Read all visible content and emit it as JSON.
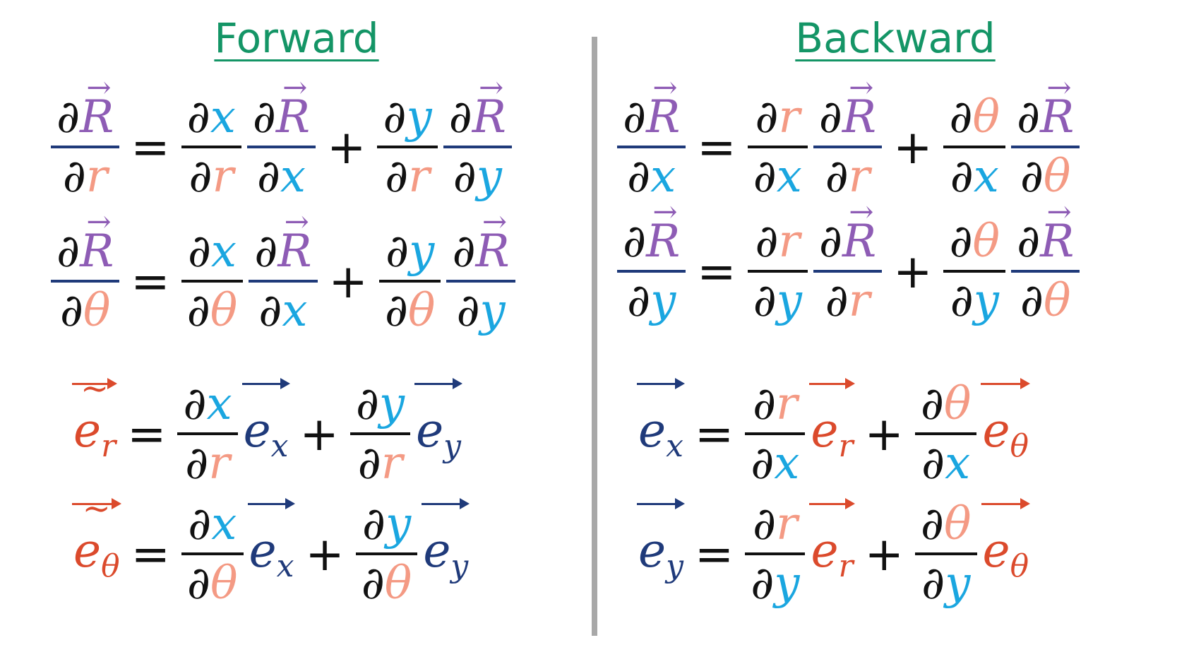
{
  "colors": {
    "heading": "#149566",
    "R": "#8e5cb5",
    "x": "#1aa6e0",
    "y": "#1aa6e0",
    "r": "#f49a84",
    "theta": "#f49a84",
    "e_cart": "#1f3a7a",
    "e_polar": "#db4a2c",
    "bar": "#1f3a7a",
    "black": "#111111"
  },
  "symbols": {
    "d": "∂",
    "R": "R",
    "x": "x",
    "y": "y",
    "r": "r",
    "theta": "θ",
    "e": "e",
    "eq": "=",
    "plus": "+",
    "tilde": "∼"
  },
  "forward": {
    "title": "Forward",
    "chain_rule": [
      {
        "wrt": "r",
        "terms": [
          "x",
          "y"
        ]
      },
      {
        "wrt": "θ",
        "terms": [
          "x",
          "y"
        ]
      }
    ],
    "basis": [
      {
        "lhs": "r",
        "wrt": "r"
      },
      {
        "lhs": "θ",
        "wrt": "θ"
      }
    ]
  },
  "backward": {
    "title": "Backward",
    "chain_rule": [
      {
        "wrt": "x",
        "terms": [
          "r",
          "θ"
        ]
      },
      {
        "wrt": "y",
        "terms": [
          "r",
          "θ"
        ]
      }
    ],
    "basis": [
      {
        "lhs": "x",
        "wrt": "x"
      },
      {
        "lhs": "y",
        "wrt": "y"
      }
    ]
  }
}
